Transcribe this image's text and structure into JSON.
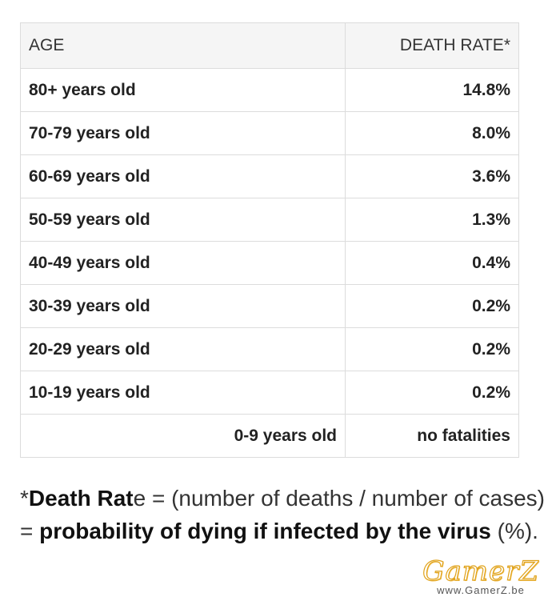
{
  "table": {
    "header": {
      "age": "AGE",
      "rate": "DEATH RATE*"
    },
    "rows": [
      {
        "age": "80+ years old",
        "rate": "14.8%"
      },
      {
        "age": "70-79 years old",
        "rate": "8.0%"
      },
      {
        "age": "60-69 years old",
        "rate": "3.6%"
      },
      {
        "age": "50-59 years old",
        "rate": "1.3%"
      },
      {
        "age": "40-49 years old",
        "rate": "0.4%"
      },
      {
        "age": "30-39 years old",
        "rate": "0.2%"
      },
      {
        "age": "20-29 years old",
        "rate": "0.2%"
      },
      {
        "age": "10-19 years old",
        "rate": "0.2%"
      },
      {
        "age": "0-9 years old",
        "rate": "no fatalities"
      }
    ]
  },
  "footnote": {
    "star": "*",
    "term_bold": "Death Rat",
    "term_rest": "e = (number of deaths / number of cases) = ",
    "emphasis": "probability of dying if infected by the virus",
    "suffix": " (%)."
  },
  "watermark": {
    "logo": "GamerZ",
    "url": "www.GamerZ.be"
  }
}
